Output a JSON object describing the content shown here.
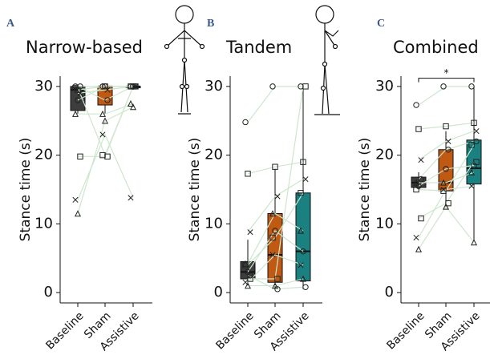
{
  "chart_data": [
    {
      "type": "box",
      "panel_label": "A",
      "title": "Narrow-based",
      "y_label": "Stance time (s)",
      "categories": [
        "Baseline",
        "Sham",
        "Assistive"
      ],
      "colors": [
        "#3d3d3d",
        "#c05a12",
        "#1a8080"
      ],
      "boxes": [
        {
          "min": 26,
          "q1": 26.5,
          "median": 29.5,
          "q3": 30,
          "max": 30
        },
        {
          "min": 26,
          "q1": 27.3,
          "median": 30,
          "q3": 30,
          "max": 30
        },
        {
          "min": 29.5,
          "q1": 29.8,
          "median": 30,
          "q3": 30,
          "max": 30
        }
      ],
      "subjects": [
        [
          30,
          30,
          30
        ],
        [
          29.5,
          30,
          30
        ],
        [
          29,
          29.5,
          30
        ],
        [
          26,
          26,
          27.5
        ],
        [
          28,
          30,
          30
        ],
        [
          19.8,
          19.8,
          30
        ],
        [
          13.5,
          23,
          13.8
        ],
        [
          11.5,
          25,
          27
        ],
        [
          30,
          28,
          30
        ],
        [
          29.8,
          20,
          30
        ]
      ],
      "line_color": "#cde6cd",
      "ylim": [
        -1.5,
        31.5
      ],
      "yticks": [
        0,
        10,
        20,
        30
      ]
    },
    {
      "type": "box",
      "panel_label": "B",
      "title": "Tandem",
      "y_label": "Stance time (s)",
      "categories": [
        "Baseline",
        "Sham",
        "Assistive"
      ],
      "colors": [
        "#3d3d3d",
        "#c05a12",
        "#1a8080"
      ],
      "boxes": [
        {
          "min": 1,
          "q1": 2,
          "median": 3,
          "q3": 4.5,
          "max": 7.7
        },
        {
          "min": 0.5,
          "q1": 1.5,
          "median": 5.5,
          "q3": 11.5,
          "max": 18
        },
        {
          "min": 0.5,
          "q1": 1.7,
          "median": 6,
          "q3": 14.5,
          "max": 30
        }
      ],
      "subjects": [
        [
          24.8,
          30,
          30
        ],
        [
          17.3,
          18.3,
          19
        ],
        [
          8.8,
          14,
          16.5
        ],
        [
          4.2,
          11.5,
          9
        ],
        [
          3,
          9,
          6
        ],
        [
          2,
          2,
          30
        ],
        [
          1.5,
          5.5,
          4
        ],
        [
          1,
          1,
          2
        ],
        [
          2.5,
          0.5,
          0.8
        ],
        [
          4,
          8,
          14.5
        ]
      ],
      "line_color": "#cde6cd",
      "ylim": [
        -1.5,
        31.5
      ],
      "yticks": [
        0,
        10,
        20,
        30
      ]
    },
    {
      "type": "box",
      "panel_label": "C",
      "title": "Combined",
      "y_label": "Stance time (s)",
      "categories": [
        "Baseline",
        "Sham",
        "Assistive"
      ],
      "colors": [
        "#3d3d3d",
        "#c05a12",
        "#1a8080"
      ],
      "boxes": [
        {
          "min": 15,
          "q1": 15.3,
          "median": 16,
          "q3": 16.8,
          "max": 17.5
        },
        {
          "min": 12.5,
          "q1": 14.8,
          "median": 16,
          "q3": 20.8,
          "max": 23.5
        },
        {
          "min": 7.5,
          "q1": 15.8,
          "median": 18.1,
          "q3": 22.2,
          "max": 30
        }
      ],
      "subjects": [
        [
          27.3,
          30,
          30
        ],
        [
          23.8,
          24.2,
          24.7
        ],
        [
          19.3,
          22,
          23.5
        ],
        [
          16,
          16,
          17.5
        ],
        [
          15.5,
          18,
          18.5
        ],
        [
          10.8,
          13,
          19
        ],
        [
          8,
          15,
          15.5
        ],
        [
          6.3,
          12.5,
          7.3
        ],
        [
          16.5,
          20.8,
          22
        ],
        [
          15,
          14.8,
          21.5
        ]
      ],
      "line_color": "#cde6cd",
      "annotation": "*",
      "ylim": [
        -1.5,
        31.5
      ],
      "yticks": [
        0,
        10,
        20,
        30
      ]
    }
  ]
}
